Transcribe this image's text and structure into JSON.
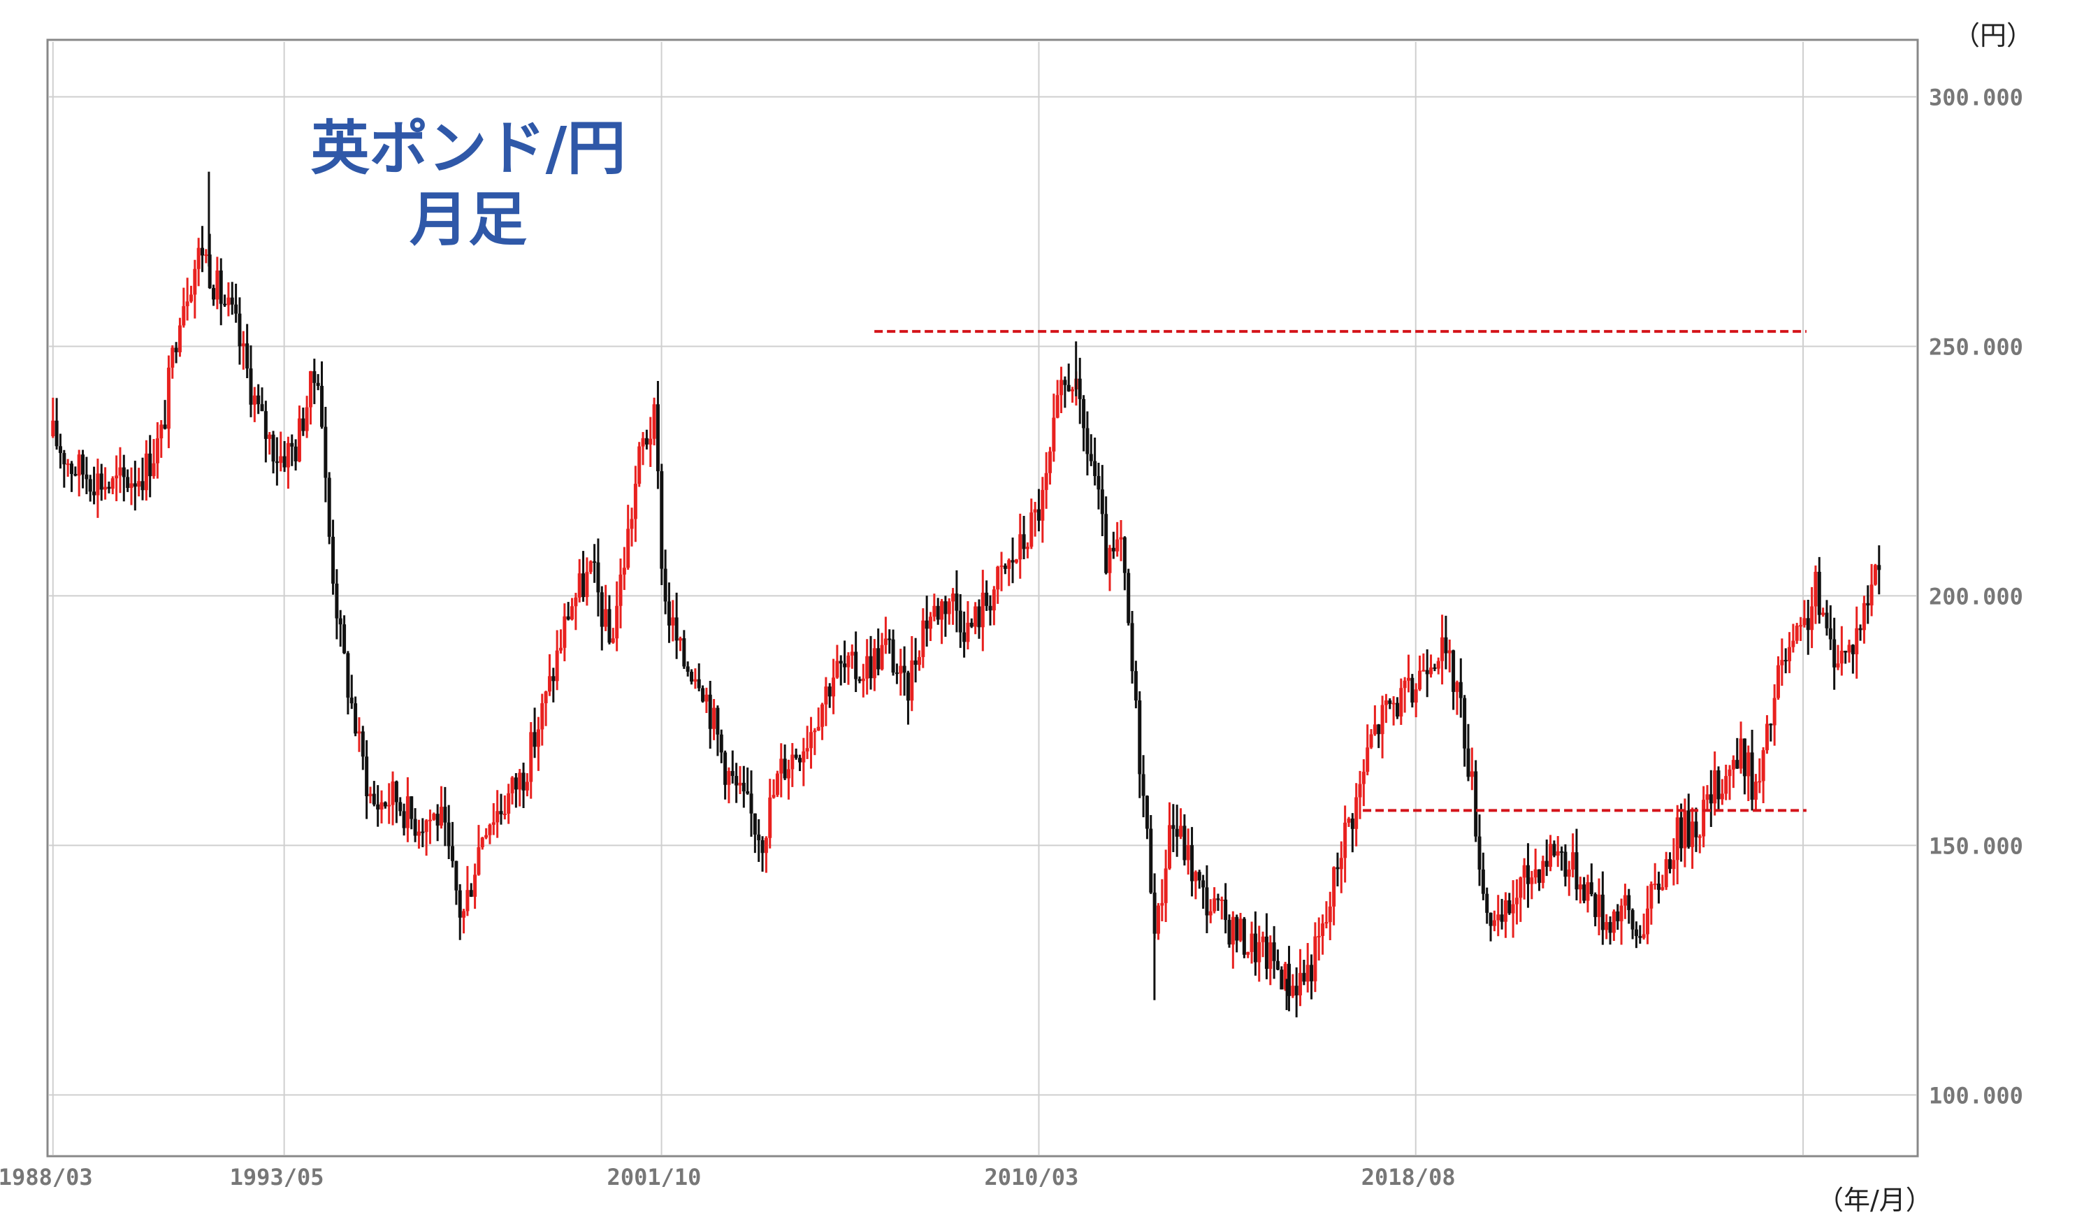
{
  "chart_data": {
    "type": "candlestick",
    "title_lines": [
      "英ポンド/円",
      "月足"
    ],
    "y_unit": "（円）",
    "x_unit": "（年/月）",
    "y_ticks": [
      "100.000",
      "150.000",
      "200.000",
      "250.000",
      "300.000"
    ],
    "y_tick_values": [
      100,
      150,
      200,
      250,
      300
    ],
    "ylim": [
      88,
      311
    ],
    "x_ticks": [
      "1988/03",
      "1993/05",
      "2001/10",
      "2010/03",
      "2018/08"
    ],
    "x_tick_dates": [
      1988.17,
      1993.33,
      2001.75,
      2010.17,
      2018.58
    ],
    "xlim": [
      1988.08,
      2029.75
    ],
    "grid": true,
    "up_color": "#e8211f",
    "down_color": "#111111",
    "resistance_lines": [
      {
        "y": 253,
        "x_start": 2006.5,
        "x_end": 2027.3,
        "color": "#d4141a"
      },
      {
        "y": 157,
        "x_start": 2017.4,
        "x_end": 2027.3,
        "color": "#d4141a"
      }
    ],
    "anchors": [
      [
        1988.17,
        232
      ],
      [
        1988.6,
        226
      ],
      [
        1989.5,
        222
      ],
      [
        1990.2,
        225
      ],
      [
        1990.6,
        232
      ],
      [
        1991.0,
        258
      ],
      [
        1991.5,
        270
      ],
      [
        1991.8,
        262
      ],
      [
        1992.2,
        255
      ],
      [
        1992.5,
        245
      ],
      [
        1992.8,
        235
      ],
      [
        1993.2,
        228
      ],
      [
        1993.6,
        230
      ],
      [
        1993.8,
        238
      ],
      [
        1994.1,
        246
      ],
      [
        1994.3,
        215
      ],
      [
        1994.6,
        190
      ],
      [
        1995.0,
        170
      ],
      [
        1995.3,
        158
      ],
      [
        1995.8,
        160
      ],
      [
        1996.2,
        155
      ],
      [
        1996.8,
        156
      ],
      [
        1997.3,
        135
      ],
      [
        1997.8,
        155
      ],
      [
        1998.2,
        158
      ],
      [
        1998.7,
        165
      ],
      [
        1999.2,
        180
      ],
      [
        1999.7,
        198
      ],
      [
        2000.2,
        205
      ],
      [
        2000.6,
        190
      ],
      [
        2001.0,
        212
      ],
      [
        2001.3,
        230
      ],
      [
        2001.6,
        235
      ],
      [
        2001.8,
        200
      ],
      [
        2002.2,
        187
      ],
      [
        2002.6,
        185
      ],
      [
        2003.2,
        165
      ],
      [
        2003.6,
        158
      ],
      [
        2004.0,
        152
      ],
      [
        2004.4,
        165
      ],
      [
        2005.0,
        172
      ],
      [
        2005.6,
        185
      ],
      [
        2006.2,
        185
      ],
      [
        2006.8,
        190
      ],
      [
        2007.2,
        180
      ],
      [
        2007.6,
        195
      ],
      [
        2008.2,
        200
      ],
      [
        2008.6,
        193
      ],
      [
        2009.2,
        202
      ],
      [
        2009.8,
        210
      ],
      [
        2010.3,
        220
      ],
      [
        2010.6,
        238
      ],
      [
        2010.9,
        245
      ],
      [
        2011.1,
        235
      ],
      [
        2011.4,
        225
      ],
      [
        2011.7,
        205
      ],
      [
        2012.0,
        210
      ],
      [
        2012.3,
        180
      ],
      [
        2012.6,
        150
      ],
      [
        2012.8,
        132
      ],
      [
        2013.1,
        155
      ],
      [
        2013.4,
        150
      ],
      [
        2013.8,
        140
      ],
      [
        2014.3,
        135
      ],
      [
        2014.9,
        130
      ],
      [
        2015.4,
        127
      ],
      [
        2015.8,
        122
      ],
      [
        2016.2,
        125
      ],
      [
        2016.6,
        135
      ],
      [
        2016.9,
        150
      ],
      [
        2017.3,
        160
      ],
      [
        2017.6,
        172
      ],
      [
        2018.0,
        178
      ],
      [
        2018.5,
        180
      ],
      [
        2018.8,
        188
      ],
      [
        2019.1,
        190
      ],
      [
        2019.5,
        182
      ],
      [
        2019.8,
        165
      ],
      [
        2020.1,
        140
      ],
      [
        2020.4,
        132
      ],
      [
        2020.8,
        140
      ],
      [
        2021.2,
        145
      ],
      [
        2021.7,
        150
      ],
      [
        2022.0,
        146
      ],
      [
        2022.4,
        142
      ],
      [
        2022.8,
        135
      ],
      [
        2023.2,
        138
      ],
      [
        2023.5,
        132
      ],
      [
        2023.9,
        140
      ],
      [
        2024.4,
        152
      ],
      [
        2024.9,
        155
      ],
      [
        2025.3,
        162
      ],
      [
        2025.6,
        166
      ],
      [
        2025.9,
        168
      ],
      [
        2026.2,
        160
      ],
      [
        2026.7,
        185
      ],
      [
        2027.2,
        192
      ],
      [
        2027.5,
        201
      ],
      [
        2027.8,
        190
      ],
      [
        2028.2,
        188
      ],
      [
        2028.6,
        197
      ],
      [
        2029.0,
        212
      ]
    ],
    "spike_events": [
      {
        "x": 1991.65,
        "high": 285
      },
      {
        "x": 2011.0,
        "high": 251
      },
      {
        "x": 2012.75,
        "low": 119
      },
      {
        "x": 2015.7,
        "low": 117
      }
    ]
  }
}
